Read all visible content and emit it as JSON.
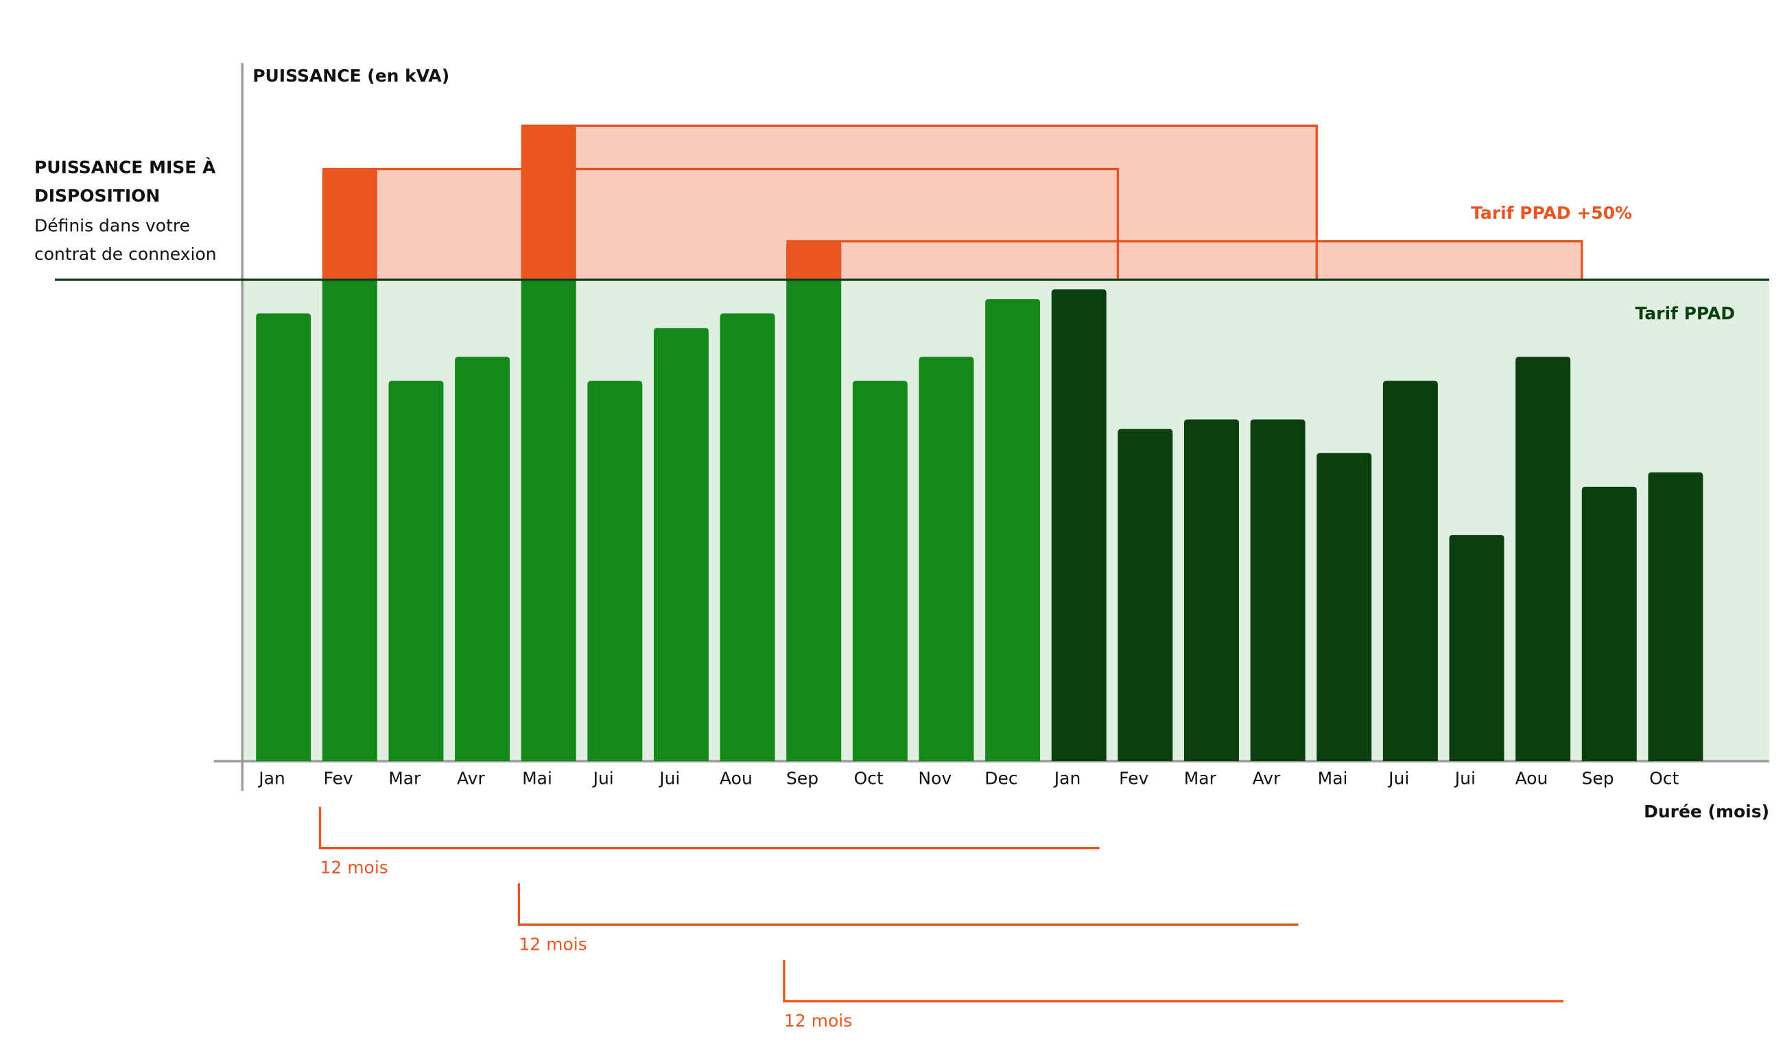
{
  "chart_data": {
    "type": "bar",
    "y_label": "PUISSANCE (en kVA)",
    "x_label": "Durée (mois)",
    "threshold_label": [
      "PUISSANCE MISE À",
      "DISPOSITION"
    ],
    "threshold_note": [
      "Définis dans votre",
      "contrat de connexion"
    ],
    "threshold": 100,
    "zone_labels": {
      "below": "Tarif PPAD",
      "above": "Tarif PPAD +50%"
    },
    "categories": [
      "Jan",
      "Fev",
      "Mar",
      "Avr",
      "Mai",
      "Jui",
      "Jui",
      "Aou",
      "Sep",
      "Oct",
      "Nov",
      "Dec",
      "Jan",
      "Fev",
      "Mar",
      "Avr",
      "Mai",
      "Jui",
      "Jui",
      "Aou",
      "Sep",
      "Oct"
    ],
    "values": [
      93,
      123,
      79,
      84,
      132,
      79,
      90,
      93,
      108,
      79,
      84,
      96,
      98,
      69,
      71,
      71,
      64,
      79,
      47,
      84,
      57,
      60
    ],
    "bar_colors": [
      "#15881c",
      "#15881c",
      "#15881c",
      "#15881c",
      "#15881c",
      "#15881c",
      "#15881c",
      "#15881c",
      "#15881c",
      "#15881c",
      "#15881c",
      "#15881c",
      "#0b3f10",
      "#0b3f10",
      "#0b3f10",
      "#0b3f10",
      "#0b3f10",
      "#0b3f10",
      "#0b3f10",
      "#0b3f10",
      "#0b3f10",
      "#0b3f10"
    ],
    "over_color": "#e85520",
    "period_months": 12,
    "period_labels": [
      "12 mois",
      "12 mois",
      "12 mois"
    ],
    "ylim": [
      0,
      145
    ]
  }
}
